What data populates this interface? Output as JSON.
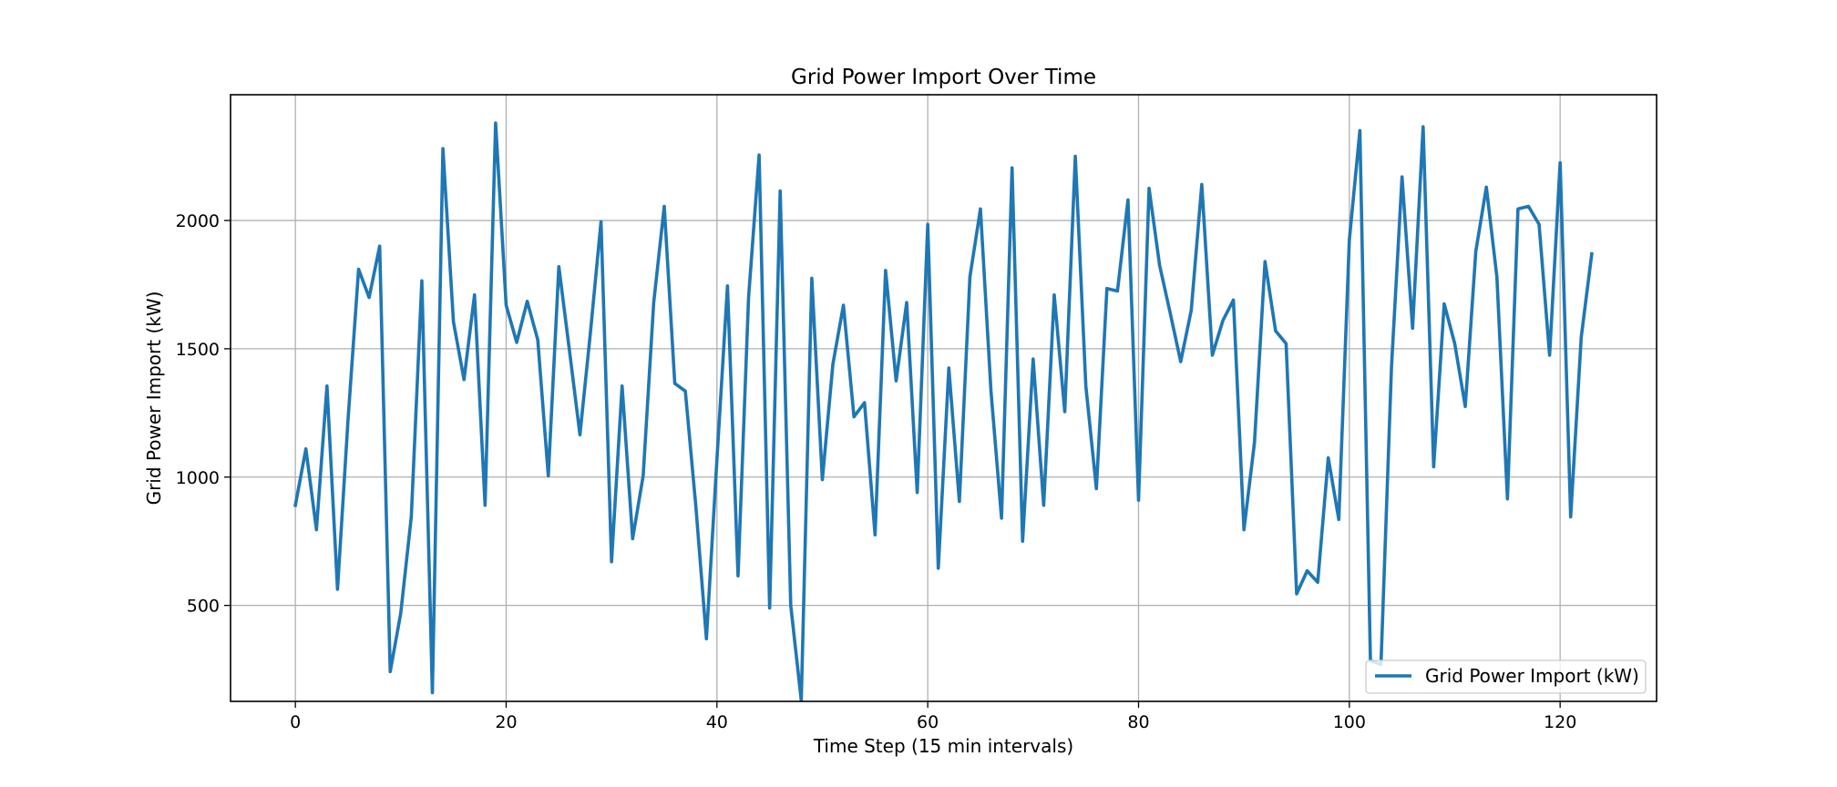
{
  "chart_data": {
    "type": "line",
    "title": "Grid Power Import Over Time",
    "xlabel": "Time Step (15 min intervals)",
    "ylabel": "Grid Power Import (kW)",
    "xlim": [
      -6.15,
      129.15
    ],
    "ylim": [
      126,
      2490
    ],
    "xticks": [
      0,
      20,
      40,
      60,
      80,
      100,
      120
    ],
    "yticks": [
      500,
      1000,
      1500,
      2000
    ],
    "grid": true,
    "legend_position": "lower-right",
    "series": [
      {
        "name": "Grid Power Import (kW)",
        "color": "#1f77b4",
        "x": [
          0,
          1,
          2,
          3,
          4,
          5,
          6,
          7,
          8,
          9,
          10,
          11,
          12,
          13,
          14,
          15,
          16,
          17,
          18,
          19,
          20,
          21,
          22,
          23,
          24,
          25,
          26,
          27,
          28,
          29,
          30,
          31,
          32,
          33,
          34,
          35,
          36,
          37,
          38,
          39,
          40,
          41,
          42,
          43,
          44,
          45,
          46,
          47,
          48,
          49,
          50,
          51,
          52,
          53,
          54,
          55,
          56,
          57,
          58,
          59,
          60,
          61,
          62,
          63,
          64,
          65,
          66,
          67,
          68,
          69,
          70,
          71,
          72,
          73,
          74,
          75,
          76,
          77,
          78,
          79,
          80,
          81,
          82,
          83,
          84,
          85,
          86,
          87,
          88,
          89,
          90,
          91,
          92,
          93,
          94,
          95,
          96,
          97,
          98,
          99,
          100,
          101,
          102,
          103,
          104,
          105,
          106,
          107,
          108,
          109,
          110,
          111,
          112,
          113,
          114,
          115,
          116,
          117,
          118,
          119,
          120,
          121,
          122,
          123
        ],
        "values": [
          890,
          1110,
          795,
          1355,
          563,
          1225,
          1810,
          1700,
          1900,
          242,
          470,
          845,
          1765,
          160,
          2280,
          1605,
          1380,
          1710,
          890,
          2380,
          1670,
          1525,
          1685,
          1535,
          1005,
          1820,
          1495,
          1165,
          1565,
          1995,
          670,
          1355,
          760,
          1005,
          1680,
          2055,
          1365,
          1335,
          885,
          370,
          1070,
          1745,
          615,
          1700,
          2255,
          490,
          2115,
          500,
          130,
          1775,
          990,
          1440,
          1670,
          1235,
          1290,
          775,
          1805,
          1375,
          1680,
          940,
          1985,
          645,
          1425,
          905,
          1780,
          2045,
          1335,
          840,
          2205,
          750,
          1460,
          890,
          1710,
          1255,
          2250,
          1355,
          955,
          1735,
          1725,
          2080,
          910,
          2125,
          1825,
          1640,
          1450,
          1650,
          2140,
          1475,
          1610,
          1690,
          795,
          1135,
          1840,
          1570,
          1520,
          545,
          635,
          590,
          1075,
          835,
          1925,
          2350,
          285,
          270,
          1430,
          2170,
          1580,
          2365,
          1040,
          1675,
          1520,
          1275,
          1880,
          2130,
          1780,
          915,
          2045,
          2055,
          1985,
          1475,
          2225,
          845,
          1545,
          1870
        ]
      }
    ]
  }
}
